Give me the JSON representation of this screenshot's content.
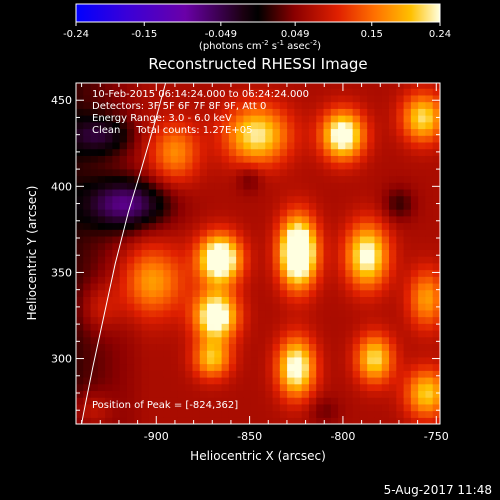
{
  "chart_data": {
    "type": "heatmap",
    "title": "Reconstructed RHESSI Image",
    "xlabel": "Heliocentric X (arcsec)",
    "ylabel": "Heliocentric Y (arcsec)",
    "xlim": [
      -943,
      -748
    ],
    "ylim": [
      262,
      460
    ],
    "x_ticks": [
      -900,
      -850,
      -800,
      -750
    ],
    "y_ticks": [
      300,
      350,
      400,
      450
    ],
    "colorbar": {
      "range": [
        -0.24,
        0.24
      ],
      "ticks": [
        "-0.24",
        "-0.15",
        "-0.049",
        "0.049",
        "0.15",
        "0.24"
      ],
      "label_main": "(photons cm",
      "label_exp1": "-2",
      "label_mid": " s",
      "label_exp2": "-1",
      "label_end": " asec",
      "label_exp3": "-2",
      "label_close": ")"
    },
    "annotations": [
      "10-Feb-2015 06:14:24.000 to 06:24:24.000",
      "Detectors: 3F 5F 6F 7F 8F 9F, Att 0",
      "Energy Range: 3.0 - 6.0 keV",
      "Clean     Total counts: 1.27E+05"
    ],
    "peak_label": "Position of Peak = [-824,362]",
    "peak": [
      -824,
      362
    ],
    "sources": [
      {
        "x": -824,
        "y": 362,
        "sx": 7,
        "sy": 14,
        "amp": 0.27
      },
      {
        "x": -825,
        "y": 295,
        "sx": 7,
        "sy": 12,
        "amp": 0.19
      },
      {
        "x": -866,
        "y": 358,
        "sx": 8,
        "sy": 10,
        "amp": 0.23
      },
      {
        "x": -868,
        "y": 325,
        "sx": 8,
        "sy": 10,
        "amp": 0.21
      },
      {
        "x": -870,
        "y": 300,
        "sx": 7,
        "sy": 8,
        "amp": 0.13
      },
      {
        "x": -902,
        "y": 345,
        "sx": 12,
        "sy": 14,
        "amp": 0.11
      },
      {
        "x": -890,
        "y": 420,
        "sx": 9,
        "sy": 12,
        "amp": 0.1
      },
      {
        "x": -846,
        "y": 430,
        "sx": 12,
        "sy": 12,
        "amp": 0.16
      },
      {
        "x": -800,
        "y": 430,
        "sx": 8,
        "sy": 10,
        "amp": 0.2
      },
      {
        "x": -787,
        "y": 360,
        "sx": 8,
        "sy": 13,
        "amp": 0.18
      },
      {
        "x": -783,
        "y": 300,
        "sx": 7,
        "sy": 10,
        "amp": 0.15
      },
      {
        "x": -757,
        "y": 440,
        "sx": 8,
        "sy": 10,
        "amp": 0.15
      },
      {
        "x": -755,
        "y": 335,
        "sx": 7,
        "sy": 12,
        "amp": 0.11
      },
      {
        "x": -755,
        "y": 280,
        "sx": 8,
        "sy": 10,
        "amp": 0.14
      },
      {
        "x": -930,
        "y": 330,
        "sx": 8,
        "sy": 10,
        "amp": 0.05
      },
      {
        "x": -935,
        "y": 270,
        "sx": 8,
        "sy": 8,
        "amp": 0.05
      },
      {
        "x": -915,
        "y": 390,
        "sx": 15,
        "sy": 10,
        "amp": -0.14
      },
      {
        "x": -930,
        "y": 430,
        "sx": 12,
        "sy": 8,
        "amp": -0.08
      },
      {
        "x": -850,
        "y": 405,
        "sx": 5,
        "sy": 6,
        "amp": -0.04
      },
      {
        "x": -770,
        "y": 390,
        "sx": 6,
        "sy": 7,
        "amp": -0.05
      },
      {
        "x": -810,
        "y": 270,
        "sx": 6,
        "sy": 6,
        "amp": -0.03
      }
    ],
    "limb": [
      [
        -895,
        460
      ],
      [
        -900,
        440
      ],
      [
        -908,
        410
      ],
      [
        -915,
        385
      ],
      [
        -922,
        355
      ],
      [
        -928,
        325
      ],
      [
        -934,
        295
      ],
      [
        -939,
        268
      ],
      [
        -940,
        262
      ]
    ]
  },
  "footer_date": "5-Aug-2017 11:48"
}
